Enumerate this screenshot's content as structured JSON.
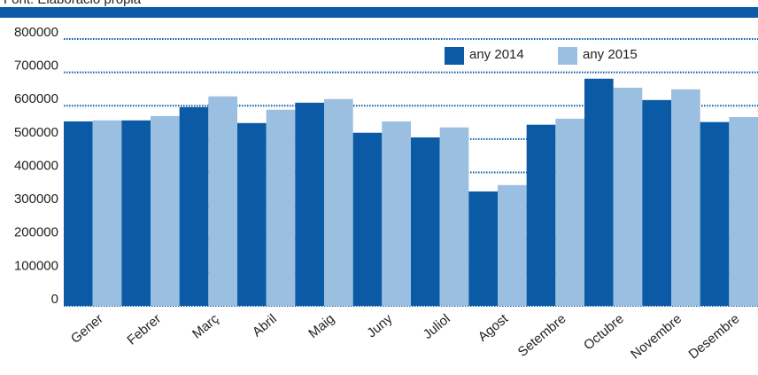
{
  "chart_data": {
    "type": "bar",
    "source": "Font: Elaboració pròpia",
    "categories": [
      "Gener",
      "Febrer",
      "Març",
      "Abril",
      "Maig",
      "Juny",
      "Juliol",
      "Agost",
      "Setembre",
      "Octubre",
      "Novembre",
      "Desembre"
    ],
    "series": [
      {
        "name": "any 2014",
        "color": "#0a5aa5",
        "values": [
          553000,
          556000,
          596000,
          548000,
          609000,
          519000,
          505000,
          343000,
          543000,
          681000,
          617000,
          551000
        ]
      },
      {
        "name": "any 2015",
        "color": "#9bbfe0",
        "values": [
          556000,
          569000,
          628000,
          588000,
          620000,
          553000,
          535000,
          362000,
          561000,
          654000,
          649000,
          566000
        ]
      }
    ],
    "ylim": [
      0,
      800000
    ],
    "yticks": [
      0,
      100000,
      200000,
      300000,
      400000,
      500000,
      600000,
      700000,
      800000
    ],
    "grid": true,
    "legend": "top-right"
  }
}
